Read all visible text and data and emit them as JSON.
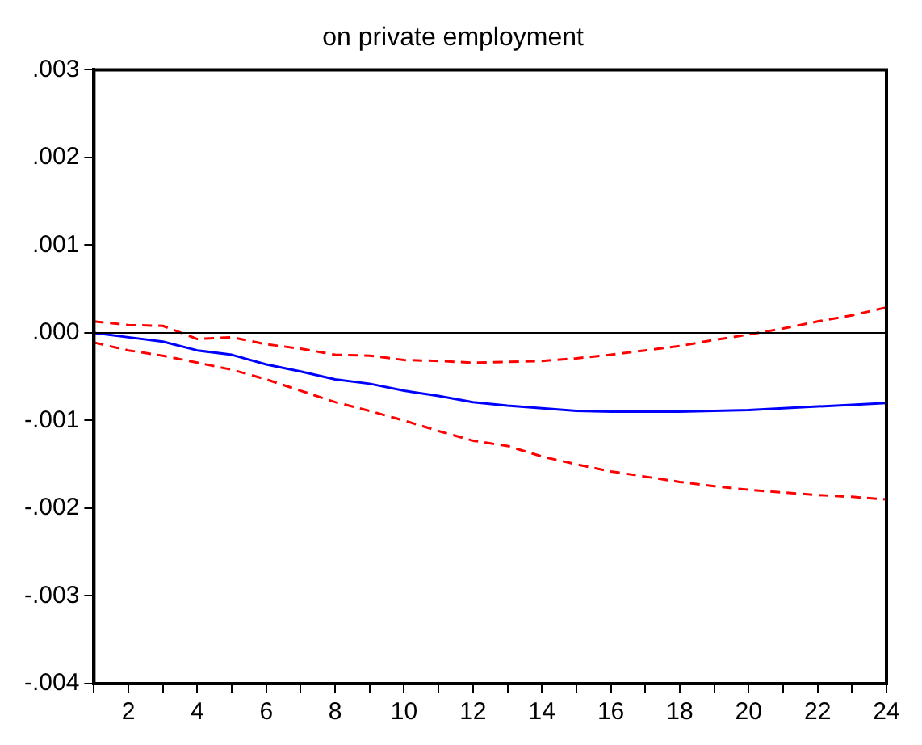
{
  "chart_data": {
    "type": "line",
    "title": "on private employment",
    "x": [
      1,
      2,
      3,
      4,
      5,
      6,
      7,
      8,
      9,
      10,
      11,
      12,
      13,
      14,
      15,
      16,
      17,
      18,
      19,
      20,
      21,
      22,
      23,
      24
    ],
    "series": [
      {
        "color": "#0000ff",
        "line_style": "solid",
        "values": [
          0,
          -5e-05,
          -0.0001,
          -0.0002,
          -0.00025,
          -0.00036,
          -0.00044,
          -0.00053,
          -0.00058,
          -0.00066,
          -0.00072,
          -0.00079,
          -0.00083,
          -0.00086,
          -0.00089,
          -0.0009,
          -0.0009,
          -0.0009,
          -0.00089,
          -0.00088,
          -0.00086,
          -0.00084,
          -0.00082,
          -0.0008
        ]
      },
      {
        "color": "#ff0000",
        "line_style": "dashed",
        "values": [
          0.00013,
          9e-05,
          8e-05,
          -7e-05,
          -5e-05,
          -0.00013,
          -0.00018,
          -0.00025,
          -0.00026,
          -0.00031,
          -0.00032,
          -0.00034,
          -0.00033,
          -0.00032,
          -0.00029,
          -0.00025,
          -0.0002,
          -0.00015,
          -8e-05,
          -2e-05,
          5e-05,
          0.00013,
          0.0002,
          0.00029
        ]
      },
      {
        "color": "#ff0000",
        "line_style": "dashed",
        "values": [
          -0.00011,
          -0.0002,
          -0.00026,
          -0.00034,
          -0.00042,
          -0.00053,
          -0.00066,
          -0.00079,
          -0.00089,
          -0.001,
          -0.00112,
          -0.00123,
          -0.00129,
          -0.00141,
          -0.0015,
          -0.00158,
          -0.00164,
          -0.0017,
          -0.00175,
          -0.00179,
          -0.00182,
          -0.00185,
          -0.00187,
          -0.0019
        ]
      }
    ],
    "xlim": [
      1,
      24
    ],
    "xticks": [
      {
        "value": 1,
        "label": null
      },
      2,
      {
        "value": 3,
        "label": null
      },
      4,
      {
        "value": 5,
        "label": null
      },
      6,
      {
        "value": 7,
        "label": null
      },
      8,
      {
        "value": 9,
        "label": null
      },
      10,
      {
        "value": 11,
        "label": null
      },
      12,
      {
        "value": 13,
        "label": null
      },
      14,
      {
        "value": 15,
        "label": null
      },
      16,
      {
        "value": 17,
        "label": null
      },
      18,
      {
        "value": 19,
        "label": null
      },
      20,
      {
        "value": 21,
        "label": null
      },
      22,
      {
        "value": 23,
        "label": null
      },
      24
    ],
    "ylim": [
      -0.004,
      0.003
    ],
    "yticks": [
      {
        "value": -0.004,
        "label": "-.004"
      },
      {
        "value": -0.003,
        "label": "-.003"
      },
      {
        "value": -0.002,
        "label": "-.002"
      },
      {
        "value": -0.001,
        "label": "-.001"
      },
      {
        "value": 0,
        "label": ".000"
      },
      {
        "value": 0.001,
        "label": ".001"
      },
      {
        "value": 0.002,
        "label": ".002"
      },
      {
        "value": 0.003,
        "label": ".003"
      }
    ],
    "ref_lines": [
      {
        "axis": "y",
        "value": 0,
        "color": "#000000"
      }
    ],
    "grid": false,
    "legend": false,
    "marker": "none"
  }
}
